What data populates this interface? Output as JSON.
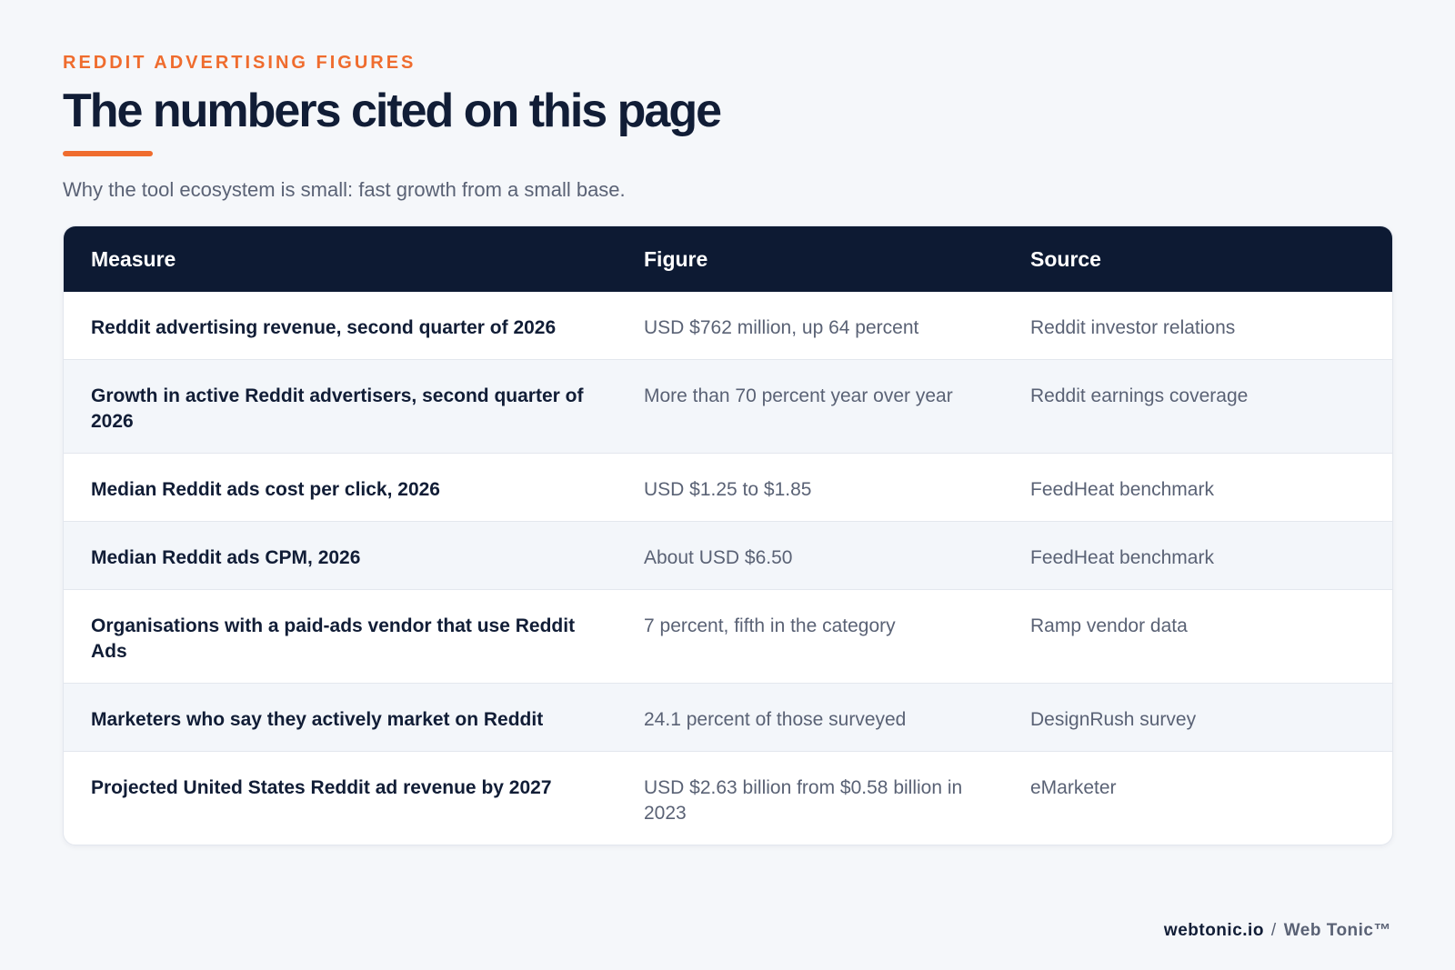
{
  "header": {
    "eyebrow": "REDDIT ADVERTISING FIGURES",
    "title": "The numbers cited on this page",
    "subtitle": "Why the tool ecosystem is small: fast growth from a small base."
  },
  "table": {
    "columns": [
      "Measure",
      "Figure",
      "Source"
    ],
    "rows": [
      {
        "measure": "Reddit advertising revenue, second quarter of 2026",
        "figure": "USD $762 million, up 64 percent",
        "source": "Reddit investor relations"
      },
      {
        "measure": "Growth in active Reddit advertisers, second quarter of 2026",
        "figure": "More than 70 percent year over year",
        "source": "Reddit earnings coverage"
      },
      {
        "measure": "Median Reddit ads cost per click, 2026",
        "figure": "USD $1.25 to $1.85",
        "source": "FeedHeat benchmark"
      },
      {
        "measure": "Median Reddit ads CPM, 2026",
        "figure": "About USD $6.50",
        "source": "FeedHeat benchmark"
      },
      {
        "measure": "Organisations with a paid-ads vendor that use Reddit Ads",
        "figure": "7 percent, fifth in the category",
        "source": "Ramp vendor data"
      },
      {
        "measure": "Marketers who say they actively market on Reddit",
        "figure": "24.1 percent of those surveyed",
        "source": "DesignRush survey"
      },
      {
        "measure": "Projected United States Reddit ad revenue by 2027",
        "figure": "USD $2.63 billion from $0.58 billion in 2023",
        "source": "eMarketer"
      }
    ]
  },
  "footer": {
    "domain": "webtonic.io",
    "separator": "/",
    "brand": "Web Tonic™"
  },
  "colors": {
    "accent": "#ef6c2e",
    "header_bg": "#0d1a33",
    "page_bg": "#f5f7fa"
  }
}
